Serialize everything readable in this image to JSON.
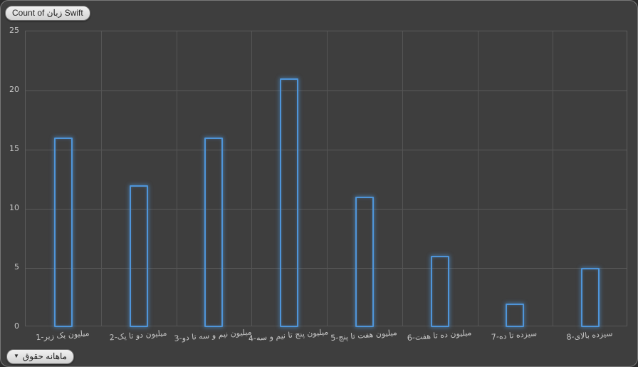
{
  "colors": {
    "background": "#3E3E3E",
    "gridline": "#5A5A5A",
    "bar_stroke": "#4F95D9",
    "axis_text": "#C9C9C9",
    "button_bg": "#D9D9D9",
    "button_text": "#1F1F1F"
  },
  "buttons": {
    "value_field_label": "Count of زبان Swift",
    "axis_field_label": "حقوق ماهانه"
  },
  "icons": {
    "dropdown": "▼"
  },
  "chart_data": {
    "type": "bar",
    "title": "",
    "xlabel": "",
    "ylabel": "",
    "categories": [
      "1-زیر یک میلیون",
      "2-یک تا دو میلیون",
      "3-دو تا سه و نیم میلیون",
      "4-سه و نیم تا پنج میلیون",
      "5-پنج تا هفت میلیون",
      "6-هفت تا ده میلیون",
      "7-ده تا سیزده",
      "8-بالای سیزده"
    ],
    "values": [
      16,
      12,
      16,
      21,
      11,
      6,
      2,
      5
    ],
    "ylim": [
      0,
      25
    ],
    "yticks": [
      0,
      5,
      10,
      15,
      20,
      25
    ],
    "grid": true,
    "legend": "none",
    "bar_fill": "transparent",
    "bar_stroke": "#4F95D9"
  }
}
